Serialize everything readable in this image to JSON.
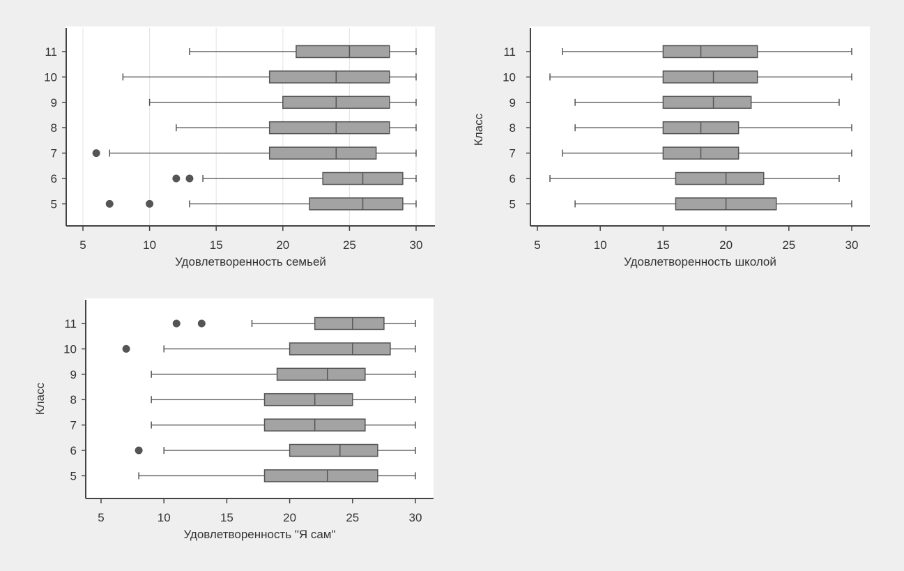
{
  "colors": {
    "page_background": "#efefef",
    "panel_background": "#ffffff",
    "box_fill": "#a3a3a3",
    "line": "#555555",
    "outlier": "#555555"
  },
  "chart_data": [
    {
      "type": "boxplot",
      "orientation": "horizontal",
      "xlabel": "Удовлетворенность семьей",
      "ylabel": "",
      "xlim": [
        4,
        30.5
      ],
      "xticks": [
        5,
        10,
        15,
        20,
        25,
        30
      ],
      "grid": true,
      "categories": [
        "11",
        "10",
        "9",
        "8",
        "7",
        "6",
        "5"
      ],
      "boxes": [
        {
          "category": "11",
          "whisker_low": 13,
          "q1": 21,
          "median": 25,
          "q3": 28,
          "whisker_high": 30,
          "outliers": []
        },
        {
          "category": "10",
          "whisker_low": 8,
          "q1": 19,
          "median": 24,
          "q3": 28,
          "whisker_high": 30,
          "outliers": []
        },
        {
          "category": "9",
          "whisker_low": 10,
          "q1": 20,
          "median": 24,
          "q3": 28,
          "whisker_high": 30,
          "outliers": []
        },
        {
          "category": "8",
          "whisker_low": 12,
          "q1": 19,
          "median": 24,
          "q3": 28,
          "whisker_high": 30,
          "outliers": []
        },
        {
          "category": "7",
          "whisker_low": 7,
          "q1": 19,
          "median": 24,
          "q3": 27,
          "whisker_high": 30,
          "outliers": [
            6
          ]
        },
        {
          "category": "6",
          "whisker_low": 14,
          "q1": 23,
          "median": 26,
          "q3": 29,
          "whisker_high": 30,
          "outliers": [
            12,
            13
          ]
        },
        {
          "category": "5",
          "whisker_low": 13,
          "q1": 22,
          "median": 26,
          "q3": 29,
          "whisker_high": 30,
          "outliers": [
            7,
            10
          ]
        }
      ]
    },
    {
      "type": "boxplot",
      "orientation": "horizontal",
      "xlabel": "Удовлетворенность школой",
      "ylabel": "Класс",
      "xlim": [
        5,
        30.5
      ],
      "xticks": [
        5,
        10,
        15,
        20,
        25,
        30
      ],
      "grid": false,
      "categories": [
        "11",
        "10",
        "9",
        "8",
        "7",
        "6",
        "5"
      ],
      "boxes": [
        {
          "category": "11",
          "whisker_low": 7,
          "q1": 15,
          "median": 18,
          "q3": 22.5,
          "whisker_high": 30,
          "outliers": []
        },
        {
          "category": "10",
          "whisker_low": 6,
          "q1": 15,
          "median": 19,
          "q3": 22.5,
          "whisker_high": 30,
          "outliers": []
        },
        {
          "category": "9",
          "whisker_low": 8,
          "q1": 15,
          "median": 19,
          "q3": 22,
          "whisker_high": 29,
          "outliers": []
        },
        {
          "category": "8",
          "whisker_low": 8,
          "q1": 15,
          "median": 18,
          "q3": 21,
          "whisker_high": 30,
          "outliers": []
        },
        {
          "category": "7",
          "whisker_low": 7,
          "q1": 15,
          "median": 18,
          "q3": 21,
          "whisker_high": 30,
          "outliers": []
        },
        {
          "category": "6",
          "whisker_low": 6,
          "q1": 16,
          "median": 20,
          "q3": 23,
          "whisker_high": 29,
          "outliers": []
        },
        {
          "category": "5",
          "whisker_low": 8,
          "q1": 16,
          "median": 20,
          "q3": 24,
          "whisker_high": 30,
          "outliers": []
        }
      ]
    },
    {
      "type": "boxplot",
      "orientation": "horizontal",
      "xlabel": "Удовлетворенность \"Я сам\"",
      "ylabel": "Класс",
      "xlim": [
        3.8,
        30.8
      ],
      "xticks": [
        5,
        10,
        15,
        20,
        25,
        30
      ],
      "grid": false,
      "categories": [
        "11",
        "10",
        "9",
        "8",
        "7",
        "6",
        "5"
      ],
      "boxes": [
        {
          "category": "11",
          "whisker_low": 17,
          "q1": 22,
          "median": 25,
          "q3": 27.5,
          "whisker_high": 30,
          "outliers": [
            11,
            13
          ]
        },
        {
          "category": "10",
          "whisker_low": 10,
          "q1": 20,
          "median": 25,
          "q3": 28,
          "whisker_high": 30,
          "outliers": [
            7
          ]
        },
        {
          "category": "9",
          "whisker_low": 9,
          "q1": 19,
          "median": 23,
          "q3": 26,
          "whisker_high": 30,
          "outliers": []
        },
        {
          "category": "8",
          "whisker_low": 9,
          "q1": 18,
          "median": 22,
          "q3": 25,
          "whisker_high": 30,
          "outliers": []
        },
        {
          "category": "7",
          "whisker_low": 9,
          "q1": 18,
          "median": 22,
          "q3": 26,
          "whisker_high": 30,
          "outliers": []
        },
        {
          "category": "6",
          "whisker_low": 10,
          "q1": 20,
          "median": 24,
          "q3": 27,
          "whisker_high": 30,
          "outliers": [
            8
          ]
        },
        {
          "category": "5",
          "whisker_low": 8,
          "q1": 18,
          "median": 23,
          "q3": 27,
          "whisker_high": 30,
          "outliers": []
        }
      ]
    }
  ]
}
